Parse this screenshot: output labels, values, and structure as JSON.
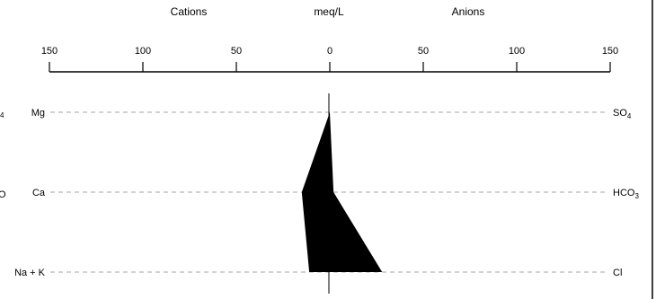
{
  "chart_data": {
    "type": "area",
    "title": "",
    "headers": {
      "left": "Cations",
      "center": "meq/L",
      "right": "Anions"
    },
    "xlim": [
      -150,
      150
    ],
    "ticks": [
      {
        "value": -150,
        "label": "150"
      },
      {
        "value": -100,
        "label": "100"
      },
      {
        "value": -50,
        "label": "50"
      },
      {
        "value": 0,
        "label": "0"
      },
      {
        "value": 50,
        "label": "50"
      },
      {
        "value": 100,
        "label": "100"
      },
      {
        "value": 150,
        "label": "150"
      }
    ],
    "rows": [
      {
        "cation": "Mg",
        "anion": "SO",
        "anion_sub": "4",
        "cation_value": 0,
        "anion_value": 0
      },
      {
        "cation": "Ca",
        "anion": "HCO",
        "anion_sub": "3",
        "cation_value": 15,
        "anion_value": 2
      },
      {
        "cation": "Na + K",
        "anion": "Cl",
        "anion_sub": "",
        "cation_value": 11,
        "anion_value": 28
      }
    ],
    "clipped_left_labels": [
      "4",
      "O"
    ],
    "fill_color": "#000000",
    "grid": false
  }
}
